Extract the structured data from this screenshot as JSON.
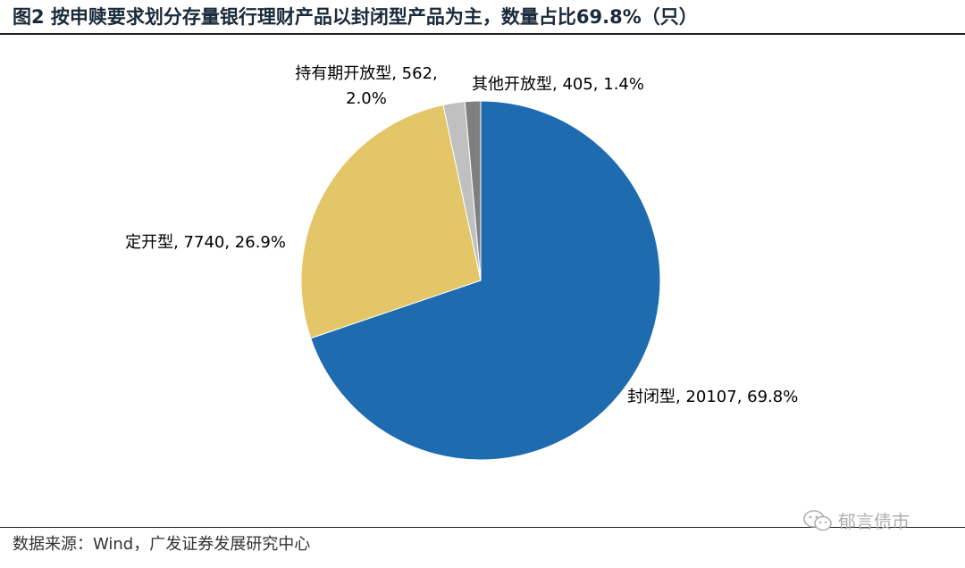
{
  "figure": {
    "title": "图2 按申赎要求划分存量银行理财产品以封闭型产品为主，数量占比69.8%（只）",
    "source": "数据来源：Wind，广发证券发展研究中心",
    "watermark": "郁言债市"
  },
  "chart_data": {
    "type": "pie",
    "title": "",
    "unit": "只",
    "legend": "none",
    "slices": [
      {
        "label": "封闭型",
        "value": 20107,
        "percent": 69.8,
        "display": "封闭型, 20107, 69.8%",
        "color": "#1F6BB0"
      },
      {
        "label": "定开型",
        "value": 7740,
        "percent": 26.9,
        "display": "定开型, 7740, 26.9%",
        "color": "#E3C667"
      },
      {
        "label": "持有期开放型",
        "value": 562,
        "percent": 2.0,
        "display_lines": [
          "持有期开放型, 562,",
          "2.0%"
        ],
        "color": "#C0C0C0"
      },
      {
        "label": "其他开放型",
        "value": 405,
        "percent": 1.4,
        "display": "其他开放型, 405, 1.4%",
        "color": "#7F7F7F"
      }
    ]
  }
}
